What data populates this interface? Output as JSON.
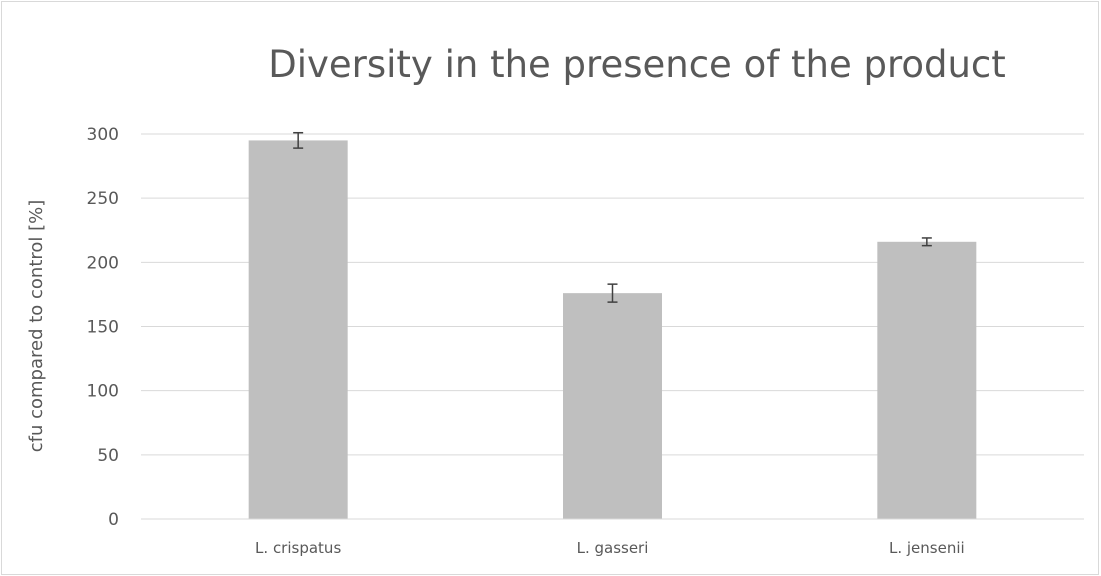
{
  "chart_data": {
    "type": "bar",
    "title": "Diversity in the presence of the product",
    "xlabel": "",
    "ylabel": "cfu compared to control [%]",
    "categories": [
      "L. crispatus",
      "L. gasseri",
      "L. jensenii"
    ],
    "values": [
      295,
      176,
      216
    ],
    "error": [
      6,
      7,
      3
    ],
    "ylim": [
      0,
      300
    ],
    "yticks": [
      "0",
      "50",
      "100",
      "150",
      "200",
      "250",
      "300"
    ],
    "grid": true,
    "legend": "none",
    "bar_color": "#bfbfbf",
    "grid_color": "#d9d9d9",
    "text_color": "#595959",
    "error_color": "#404040"
  }
}
